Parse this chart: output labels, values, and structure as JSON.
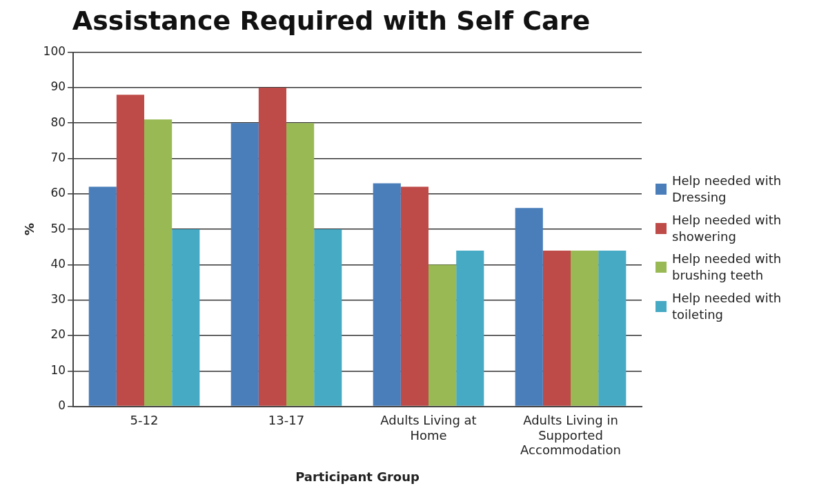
{
  "chart_data": {
    "type": "bar",
    "title": "Assistance Required with Self Care",
    "xlabel": "Participant Group",
    "ylabel": "%",
    "categories": [
      "5-12",
      "13-17",
      "Adults Living at Home",
      "Adults Living in Supported Accommodation"
    ],
    "series": [
      {
        "name": "Help needed with Dressing",
        "color": "#4a7ebb",
        "values": [
          62,
          80,
          63,
          56
        ]
      },
      {
        "name": "Help needed with showering",
        "color": "#be4b48",
        "values": [
          88,
          90,
          62,
          44
        ]
      },
      {
        "name": "Help needed with brushing teeth",
        "color": "#98b954",
        "values": [
          81,
          80,
          40,
          44
        ]
      },
      {
        "name": "Help needed with toileting",
        "color": "#46aac5",
        "values": [
          50,
          50,
          44,
          44
        ]
      }
    ],
    "ylim": [
      0,
      100
    ],
    "yticks": [
      0,
      10,
      20,
      30,
      40,
      50,
      60,
      70,
      80,
      90,
      100
    ],
    "grid": "y",
    "legend": "right"
  }
}
